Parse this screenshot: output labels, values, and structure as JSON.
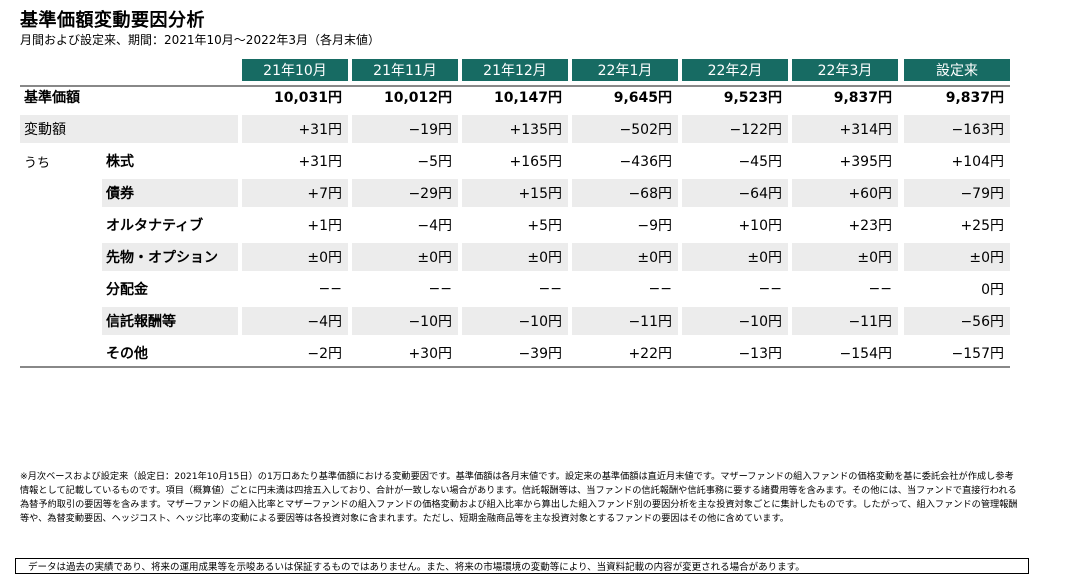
{
  "title": "基準価額変動要因分析",
  "subtitle": "月間および設定来、期間：2021年10月～2022年3月（各月末値）",
  "table": {
    "headers": [
      "21年10月",
      "21年11月",
      "21年12月",
      "22年1月",
      "22年2月",
      "22年3月",
      "設定来"
    ],
    "nav_row": {
      "label": "基準価額",
      "values": [
        "10,031円",
        "10,012円",
        "10,147円",
        "9,645円",
        "9,523円",
        "9,837円",
        "9,837円"
      ]
    },
    "change_row": {
      "label": "変動額",
      "values": [
        "+31円",
        "−19円",
        "+135円",
        "−502円",
        "−122円",
        "+314円",
        "−163円"
      ]
    },
    "uchi_label": "うち",
    "breakdown": [
      {
        "label": "株式",
        "values": [
          "+31円",
          "−5円",
          "+165円",
          "−436円",
          "−45円",
          "+395円",
          "+104円"
        ]
      },
      {
        "label": "債券",
        "values": [
          "+7円",
          "−29円",
          "+15円",
          "−68円",
          "−64円",
          "+60円",
          "−79円"
        ]
      },
      {
        "label": "オルタナティブ",
        "values": [
          "+1円",
          "−4円",
          "+5円",
          "−9円",
          "+10円",
          "+23円",
          "+25円"
        ]
      },
      {
        "label": "先物・オプション",
        "values": [
          "±0円",
          "±0円",
          "±0円",
          "±0円",
          "±0円",
          "±0円",
          "±0円"
        ]
      },
      {
        "label": "分配金",
        "values": [
          "−−",
          "−−",
          "−−",
          "−−",
          "−−",
          "−−",
          "0円"
        ]
      },
      {
        "label": "信託報酬等",
        "values": [
          "−4円",
          "−10円",
          "−10円",
          "−11円",
          "−10円",
          "−11円",
          "−56円"
        ]
      },
      {
        "label": "その他",
        "values": [
          "−2円",
          "+30円",
          "−39円",
          "+22円",
          "−13円",
          "−154円",
          "−157円"
        ]
      }
    ]
  },
  "note": "※月次ベースおよび設定来（設定日：2021年10月15日）の1万口あたり基準価額における変動要因です。基準価額は各月末値です。設定来の基準価額は直近月末値です。マザーファンドの組入ファンドの価格変動を基に委託会社が作成し参考情報として記載しているものです。項目（概算値）ごとに円未満は四捨五入しており、合計が一致しない場合があります。信託報酬等は、当ファンドの信託報酬や信託事務に要する諸費用等を含みます。その他には、当ファンドで直接行われる為替予約取引の要因等を含みます。マザーファンドの組入比率とマザーファンドの組入ファンドの価格変動および組入比率から算出した組入ファンド別の要因分析を主な投資対象ごとに集計したものです。したがって、組入ファンドの管理報酬等や、為替変動要因、ヘッジコスト、ヘッジ比率の変動による要因等は各投資対象に含まれます。ただし、短期金融商品等を主な投資対象とするファンドの要因はその他に含めています。",
  "disclaimer": "データは過去の実績であり、将来の運用成果等を示唆あるいは保証するものではありません。また、将来の市場環境の変動等により、当資料記載の内容が変更される場合があります。"
}
